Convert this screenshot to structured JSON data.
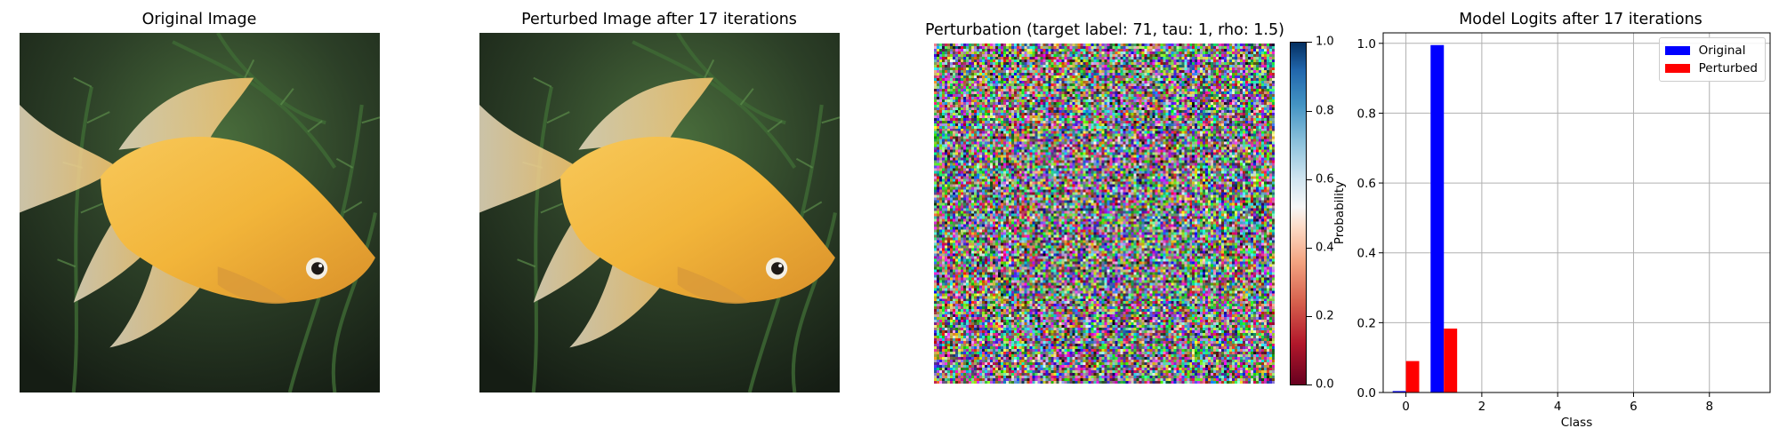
{
  "panels": {
    "original": {
      "title": "Original Image"
    },
    "perturbed": {
      "title": "Perturbed Image after 17 iterations"
    },
    "perturbation": {
      "title": "Perturbation (target label: 71, tau: 1, rho: 1.5)",
      "colorbar_ticks": [
        "0.0",
        "0.2",
        "0.4",
        "0.6",
        "0.8",
        "1.0"
      ]
    },
    "logits": {
      "title": "Model Logits after 17 iterations"
    }
  },
  "chart_data": {
    "type": "bar",
    "title": "Model Logits after 17 iterations",
    "xlabel": "Class",
    "ylabel": "Probability",
    "xlim": [
      -0.6,
      9.6
    ],
    "ylim": [
      0,
      1.03
    ],
    "xticks": [
      0,
      2,
      4,
      6,
      8
    ],
    "yticks": [
      0.0,
      0.2,
      0.4,
      0.6,
      0.8,
      1.0
    ],
    "grid": true,
    "legend_position": "top-right",
    "bar_width": 0.35,
    "series": [
      {
        "name": "Original",
        "color": "#0000ff",
        "offset": -0.175,
        "points": [
          {
            "x": 0,
            "y": 0.004
          },
          {
            "x": 1,
            "y": 0.995
          }
        ]
      },
      {
        "name": "Perturbed",
        "color": "#ff0000",
        "offset": 0.175,
        "points": [
          {
            "x": 0,
            "y": 0.09
          },
          {
            "x": 1,
            "y": 0.183
          }
        ]
      }
    ]
  }
}
